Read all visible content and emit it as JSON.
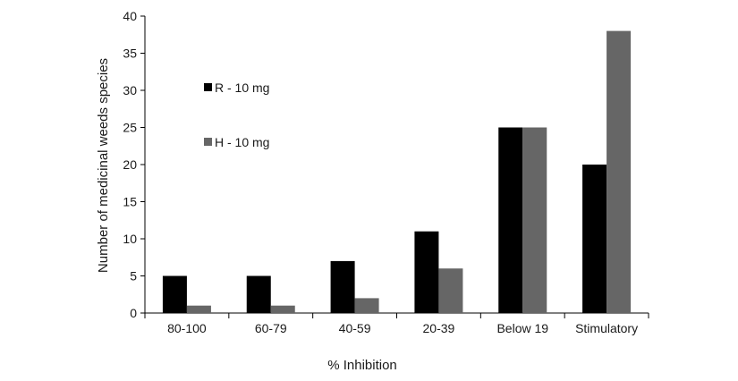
{
  "chart_data": {
    "type": "bar",
    "categories": [
      "80-100",
      "60-79",
      "40-59",
      "20-39",
      "Below 19",
      "Stimulatory"
    ],
    "series": [
      {
        "name": "R - 10 mg",
        "values": [
          5,
          5,
          7,
          11,
          25,
          20
        ],
        "color": "#000000"
      },
      {
        "name": "H - 10 mg",
        "values": [
          1,
          1,
          2,
          6,
          25,
          38
        ],
        "color": "#666666"
      }
    ],
    "xlabel": "% Inhibition",
    "ylabel": "Number of medicinal weeds species",
    "ylim": [
      0,
      40
    ],
    "yticks": [
      0,
      5,
      10,
      15,
      20,
      25,
      30,
      35,
      40
    ],
    "grid": false,
    "legend_position": "top-left inside"
  }
}
